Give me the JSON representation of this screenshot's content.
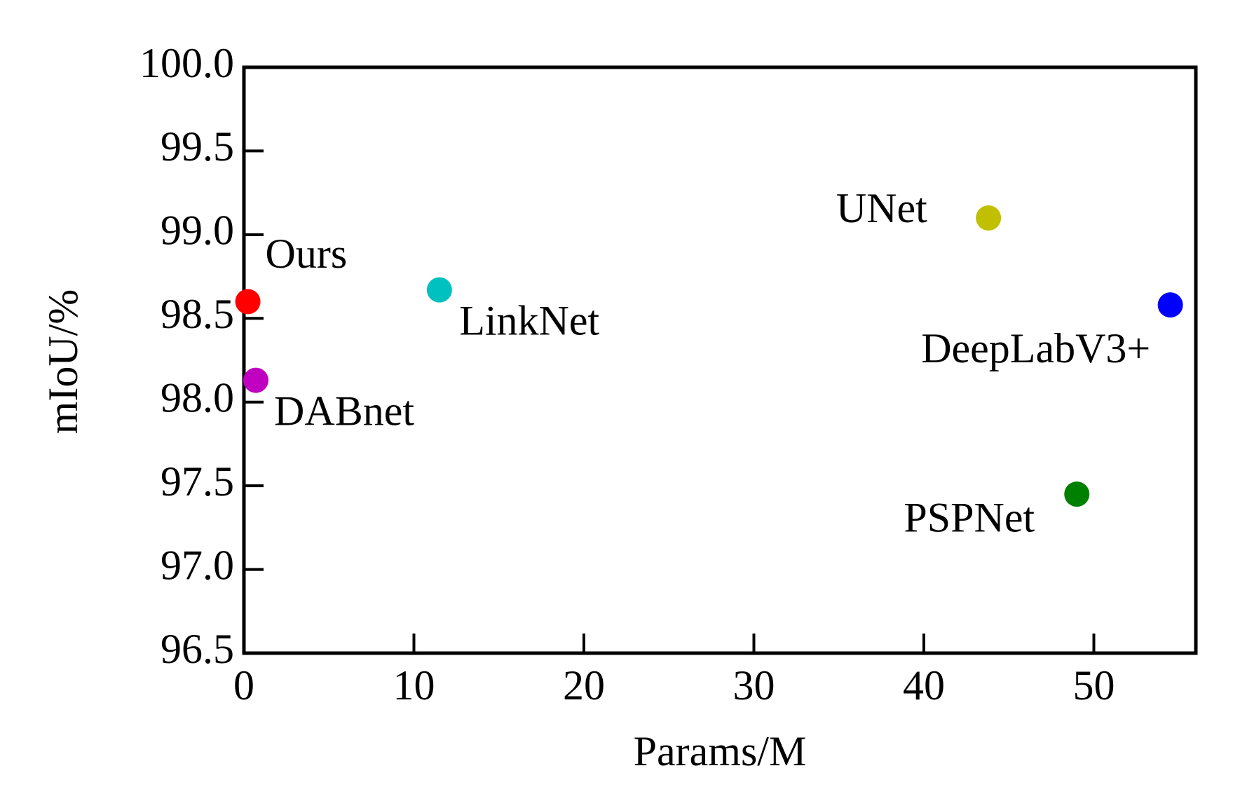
{
  "chart_data": {
    "type": "scatter",
    "x_label": "Params/M",
    "y_label": "mIoU/%",
    "xlim": [
      0,
      56
    ],
    "ylim": [
      96.5,
      100
    ],
    "xticks": [
      0,
      10,
      20,
      30,
      40,
      50
    ],
    "yticks": [
      {
        "value": 96.5,
        "label": "96.5"
      },
      {
        "value": 97,
        "label": "97.0"
      },
      {
        "value": 97.5,
        "label": "97.5"
      },
      {
        "value": 98,
        "label": "98.0"
      },
      {
        "value": 98.5,
        "label": "98.5"
      },
      {
        "value": 99,
        "label": "99.0"
      },
      {
        "value": 99.5,
        "label": "99.5"
      },
      {
        "value": 100,
        "label": "100.0"
      }
    ],
    "grid": false,
    "series": [
      {
        "name": "Ours",
        "color": "#ff0000",
        "x": [
          0.23
        ],
        "values": [
          98.6
        ]
      },
      {
        "name": "DABnet",
        "color": "#c000c0",
        "x": [
          0.7
        ],
        "values": [
          98.13
        ]
      },
      {
        "name": "LinkNet",
        "color": "#00c0c0",
        "x": [
          11.5
        ],
        "values": [
          98.67
        ]
      },
      {
        "name": "UNet",
        "color": "#c0c000",
        "x": [
          43.8
        ],
        "values": [
          99.1
        ]
      },
      {
        "name": "DeepLabV3+",
        "color": "#0000ff",
        "x": [
          54.5
        ],
        "values": [
          98.58
        ]
      },
      {
        "name": "PSPNet",
        "color": "#008000",
        "x": [
          49.0
        ],
        "values": [
          97.45
        ]
      }
    ]
  }
}
